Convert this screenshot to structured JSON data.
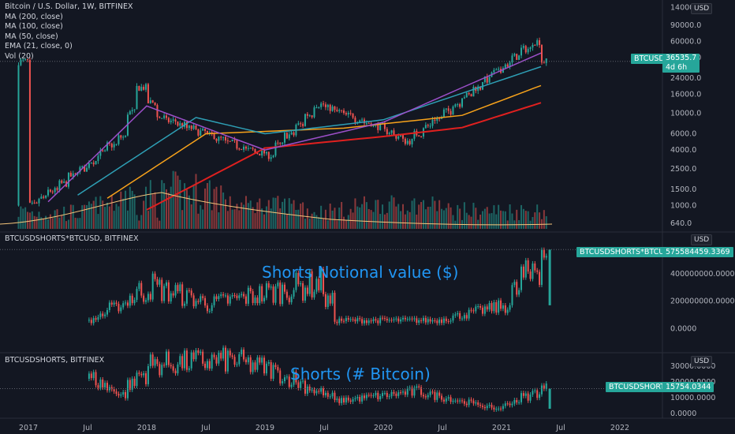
{
  "legend": [
    "Bitcoin / U.S. Dollar, 1W, BITFINEX",
    "MA (200, close)",
    "MA (100, close)",
    "MA (50, close)",
    "EMA (21, close, 0)",
    "Vol (20)"
  ],
  "currency": "USD",
  "panes": {
    "price": {
      "symbol_tag": "BTCUSD",
      "last_price": "36535.7",
      "countdown": "4d 6h"
    },
    "notional": {
      "label": "BTCUSDSHORTS*BTCUSD, BITFINEX",
      "tag": "BTCUSDSHORTS*BTCUSD",
      "last_value": "575584459.3369",
      "annotation": "Shorts Notional value ($)"
    },
    "shorts": {
      "label": "BTCUSDSHORTS, BITFINEX",
      "tag": "BTCUSDSHORTS",
      "last_value": "15754.0344",
      "annotation": "Shorts (# Bitcoin)"
    }
  },
  "colors": {
    "background": "#131722",
    "up": "#26a69a",
    "down": "#ef5350",
    "ma200": "#e0201f",
    "ma100": "#f7a21b",
    "ma50": "#2e9fb5",
    "ema21": "#9c4fc9",
    "vol_ma": "#f5c57a",
    "annotation": "#2196f3"
  },
  "chart_data": [
    {
      "type": "candlestick",
      "title": "Bitcoin / U.S. Dollar, 1W, BITFINEX",
      "scale": "log",
      "y_ticks": [
        "140000.0",
        "90000.0",
        "60000.0",
        "40000.0",
        "24000.0",
        "16000.0",
        "10000.0",
        "6000.0",
        "4000.0",
        "2500.0",
        "1500.0",
        "1000.0",
        "640.0"
      ],
      "x_ticks": [
        "2017",
        "Jul",
        "2018",
        "Jul",
        "2019",
        "Jul",
        "2020",
        "Jul",
        "2021",
        "Jul",
        "2022"
      ],
      "key_points": [
        {
          "date": "2017-01",
          "close": 1000
        },
        {
          "date": "2017-06",
          "close": 2500
        },
        {
          "date": "2017-10",
          "close": 5500
        },
        {
          "date": "2017-12",
          "close": 19000
        },
        {
          "date": "2018-02",
          "close": 9000
        },
        {
          "date": "2018-06",
          "close": 6300
        },
        {
          "date": "2018-11",
          "close": 4000
        },
        {
          "date": "2019-01",
          "close": 3500
        },
        {
          "date": "2019-06",
          "close": 12500
        },
        {
          "date": "2019-12",
          "close": 7200
        },
        {
          "date": "2020-03",
          "close": 5000
        },
        {
          "date": "2020-07",
          "close": 10500
        },
        {
          "date": "2020-12",
          "close": 28000
        },
        {
          "date": "2021-04",
          "close": 60000
        },
        {
          "date": "2021-05",
          "close": 36500
        }
      ],
      "series": [
        {
          "name": "MA (200, close)",
          "points": [
            [
              "2018-01",
              900
            ],
            [
              "2019-01",
              4200
            ],
            [
              "2020-01",
              5600
            ],
            [
              "2020-09",
              7000
            ],
            [
              "2021-05",
              13000
            ]
          ]
        },
        {
          "name": "MA (100, close)",
          "points": [
            [
              "2017-09",
              1200
            ],
            [
              "2018-07",
              6000
            ],
            [
              "2019-09",
              6900
            ],
            [
              "2020-09",
              9500
            ],
            [
              "2021-05",
              20000
            ]
          ]
        },
        {
          "name": "MA (50, close)",
          "points": [
            [
              "2017-06",
              1300
            ],
            [
              "2018-06",
              9000
            ],
            [
              "2019-01",
              6000
            ],
            [
              "2020-01",
              8500
            ],
            [
              "2021-05",
              32000
            ]
          ]
        },
        {
          "name": "EMA (21, close, 0)",
          "points": [
            [
              "2017-03",
              1100
            ],
            [
              "2018-01",
              12000
            ],
            [
              "2019-01",
              4000
            ],
            [
              "2020-01",
              8000
            ],
            [
              "2021-05",
              45000
            ]
          ]
        }
      ],
      "last": 36535.7
    },
    {
      "type": "bar",
      "title": "BTCUSDSHORTS*BTCUSD, BITFINEX",
      "y_ticks": [
        "400000000.0000",
        "200000000.0000",
        "0.0000"
      ],
      "ylim": [
        -20000000,
        600000000
      ],
      "key_points": [
        {
          "date": "2017-07",
          "value": 60000000
        },
        {
          "date": "2018-01",
          "value": 310000000
        },
        {
          "date": "2018-07",
          "value": 180000000
        },
        {
          "date": "2019-06",
          "value": 330000000
        },
        {
          "date": "2019-08",
          "value": 60000000
        },
        {
          "date": "2020-06",
          "value": 60000000
        },
        {
          "date": "2021-01",
          "value": 170000000
        },
        {
          "date": "2021-05",
          "value": 575584459.3369
        }
      ],
      "last": 575584459.3369
    },
    {
      "type": "bar",
      "title": "BTCUSDSHORTS, BITFINEX",
      "y_ticks": [
        "30000.0000",
        "20000.0000",
        "10000.0000",
        "0.0000"
      ],
      "ylim": [
        -1000,
        36000
      ],
      "key_points": [
        {
          "date": "2017-07",
          "value": 22000
        },
        {
          "date": "2017-10",
          "value": 12000
        },
        {
          "date": "2018-01",
          "value": 31000
        },
        {
          "date": "2018-09",
          "value": 34000
        },
        {
          "date": "2019-01",
          "value": 28000
        },
        {
          "date": "2019-08",
          "value": 8000
        },
        {
          "date": "2020-04",
          "value": 14000
        },
        {
          "date": "2020-12",
          "value": 3000
        },
        {
          "date": "2021-05",
          "value": 15754.0344
        }
      ],
      "last": 15754.0344
    }
  ]
}
